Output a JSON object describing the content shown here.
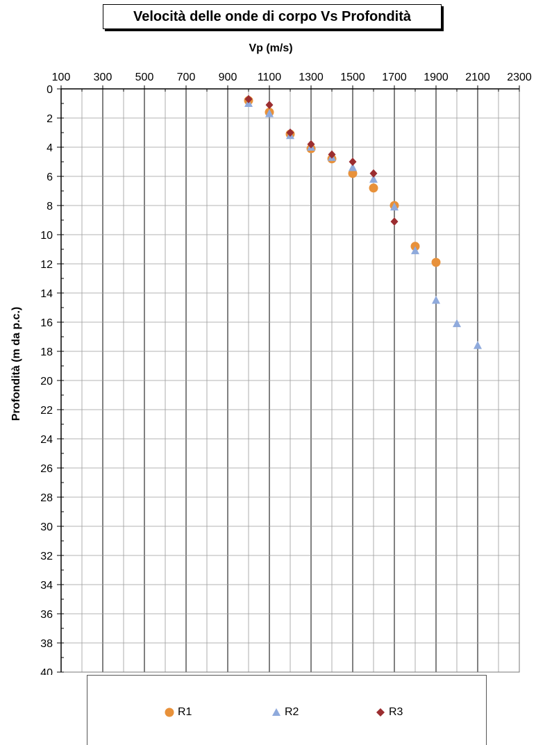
{
  "chart_data": {
    "type": "scatter",
    "title": "Velocità delle onde di corpo Vs Profondità",
    "xlabel": "Vp (m/s)",
    "ylabel": "Profondità (m da p.c.)",
    "xlim": [
      100,
      2300
    ],
    "ylim": [
      0,
      40
    ],
    "y_inverted": true,
    "x_axis_position": "top",
    "x_ticks": [
      100,
      300,
      500,
      700,
      900,
      1100,
      1300,
      1500,
      1700,
      1900,
      2100,
      2300
    ],
    "y_ticks": [
      0,
      2,
      4,
      6,
      8,
      10,
      12,
      14,
      16,
      18,
      20,
      22,
      24,
      26,
      28,
      30,
      32,
      34,
      36,
      38,
      40
    ],
    "grid": true,
    "legend_position": "bottom",
    "series": [
      {
        "name": "R1",
        "marker": "circle",
        "color": "#E8913A",
        "points": [
          {
            "x": 1000,
            "y": 0.8
          },
          {
            "x": 1100,
            "y": 1.6
          },
          {
            "x": 1200,
            "y": 3.1
          },
          {
            "x": 1300,
            "y": 4.1
          },
          {
            "x": 1400,
            "y": 4.8
          },
          {
            "x": 1500,
            "y": 5.8
          },
          {
            "x": 1600,
            "y": 6.8
          },
          {
            "x": 1700,
            "y": 8.0
          },
          {
            "x": 1800,
            "y": 10.8
          },
          {
            "x": 1900,
            "y": 11.9
          }
        ]
      },
      {
        "name": "R2",
        "marker": "triangle",
        "color": "#8FAADC",
        "points": [
          {
            "x": 1000,
            "y": 1.0
          },
          {
            "x": 1100,
            "y": 1.7
          },
          {
            "x": 1200,
            "y": 3.2
          },
          {
            "x": 1300,
            "y": 4.0
          },
          {
            "x": 1400,
            "y": 4.7
          },
          {
            "x": 1500,
            "y": 5.4
          },
          {
            "x": 1600,
            "y": 6.2
          },
          {
            "x": 1700,
            "y": 8.1
          },
          {
            "x": 1800,
            "y": 11.1
          },
          {
            "x": 1900,
            "y": 14.5
          },
          {
            "x": 2000,
            "y": 16.1
          },
          {
            "x": 2100,
            "y": 17.6
          }
        ]
      },
      {
        "name": "R3",
        "marker": "diamond",
        "color": "#9B2D30",
        "points": [
          {
            "x": 1000,
            "y": 0.7
          },
          {
            "x": 1100,
            "y": 1.1
          },
          {
            "x": 1200,
            "y": 3.0
          },
          {
            "x": 1300,
            "y": 3.8
          },
          {
            "x": 1400,
            "y": 4.5
          },
          {
            "x": 1500,
            "y": 5.0
          },
          {
            "x": 1600,
            "y": 5.8
          },
          {
            "x": 1700,
            "y": 9.1
          }
        ]
      }
    ]
  }
}
